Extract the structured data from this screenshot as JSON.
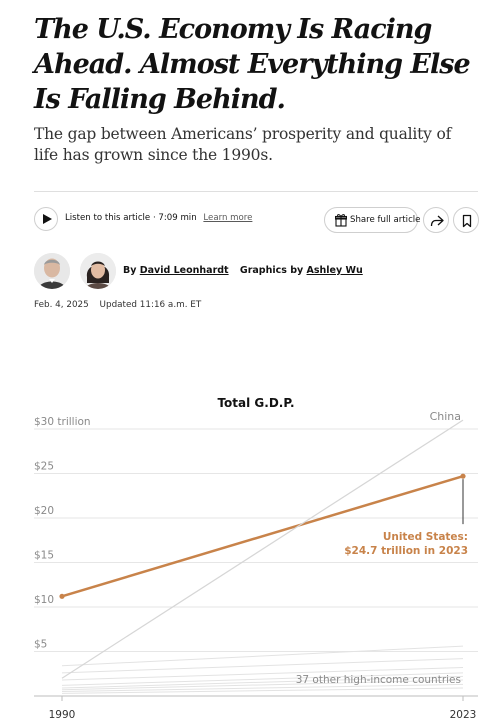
{
  "article": {
    "headline": "The U.S. Economy Is Racing Ahead. Almost Everything Else Is Falling Behind.",
    "dek": "The gap between Americans’ prosperity and quality of life has grown since the 1990s.",
    "listen_text": "Listen to this article · 7:09 min",
    "learn_more": "Learn more",
    "share_label": "Share full article",
    "by_prefix": "By",
    "author": "David Leonhardt",
    "graphics_prefix": "Graphics by",
    "graphics_author": "Ashley Wu",
    "date": "Feb. 4, 2025",
    "updated": "Updated 11:16 a.m. ET"
  },
  "icons": {
    "play": "play-icon",
    "share_gift": "gift-icon",
    "share_arrow": "share-arrow-icon",
    "bookmark": "bookmark-icon"
  },
  "colors": {
    "us_line": "#c8834a",
    "china_line": "#d6d6d6",
    "others_line": "#e3e3e3",
    "grid": "#e6e6e6"
  },
  "chart_data": {
    "type": "line",
    "title": "Total G.D.P.",
    "x": [
      1990,
      2023
    ],
    "x_tick_labels": [
      "1990",
      "2023"
    ],
    "y_ticks": [
      5,
      10,
      15,
      20,
      25,
      30
    ],
    "y_tick_labels": [
      "$5",
      "$10",
      "$15",
      "$20",
      "$25",
      "$30 trillion"
    ],
    "ylim": [
      0,
      30
    ],
    "grid": true,
    "series": [
      {
        "name": "United States",
        "values": [
          11.2,
          24.7
        ],
        "annotation": [
          "United States:",
          "$24.7 trillion in 2023"
        ]
      },
      {
        "name": "China",
        "values": [
          2.0,
          31.0
        ],
        "label": "China"
      },
      {
        "name": "37 other high-income countries",
        "label": "37 other high-income countries",
        "lines": [
          [
            1.8,
            3.2
          ],
          [
            1.2,
            2.6
          ],
          [
            0.9,
            2.2
          ],
          [
            0.7,
            1.8
          ],
          [
            2.6,
            4.2
          ],
          [
            3.4,
            5.6
          ],
          [
            0.5,
            1.3
          ],
          [
            0.3,
            0.9
          ]
        ]
      }
    ]
  }
}
